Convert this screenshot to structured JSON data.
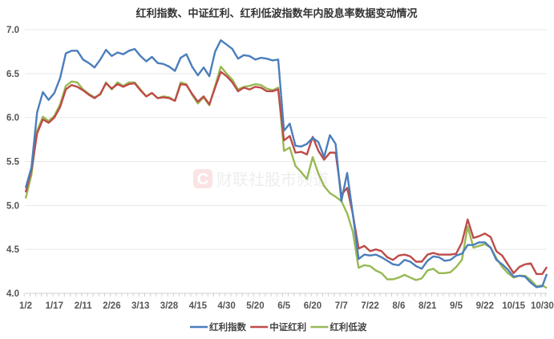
{
  "chart_data": {
    "type": "line",
    "title": "红利指数、中证红利、红利低波指数年内股息率数据变动情况",
    "xlabel": "",
    "ylabel": "",
    "ylim": [
      4.0,
      7.0
    ],
    "yticks": [
      "4.0",
      "4.5",
      "5.0",
      "5.5",
      "6.0",
      "6.5",
      "7.0"
    ],
    "x_tick_labels": [
      "1/2",
      "1/17",
      "2/11",
      "2/26",
      "3/13",
      "3/28",
      "4/15",
      "4/30",
      "5/20",
      "6/5",
      "6/20",
      "7/7",
      "7/22",
      "8/6",
      "8/21",
      "9/5",
      "9/22",
      "10/15",
      "10/30"
    ],
    "grid": true,
    "legend_position": "bottom",
    "watermark": "财联社股市频道",
    "series": [
      {
        "name": "红利指数",
        "color": "#4a7ebb",
        "values": [
          5.2,
          5.43,
          6.06,
          6.29,
          6.2,
          6.28,
          6.45,
          6.73,
          6.76,
          6.76,
          6.66,
          6.62,
          6.57,
          6.66,
          6.77,
          6.7,
          6.74,
          6.72,
          6.76,
          6.78,
          6.7,
          6.64,
          6.69,
          6.62,
          6.61,
          6.58,
          6.53,
          6.68,
          6.72,
          6.58,
          6.48,
          6.57,
          6.47,
          6.75,
          6.88,
          6.83,
          6.78,
          6.67,
          6.71,
          6.7,
          6.66,
          6.68,
          6.67,
          6.65,
          6.66,
          5.85,
          5.93,
          5.68,
          5.67,
          5.7,
          5.77,
          5.72,
          5.55,
          5.8,
          5.7,
          5.05,
          5.37,
          4.9,
          4.39,
          4.44,
          4.43,
          4.44,
          4.41,
          4.37,
          4.33,
          4.32,
          4.38,
          4.36,
          4.31,
          4.28,
          4.37,
          4.42,
          4.41,
          4.37,
          4.38,
          4.43,
          4.45,
          4.55,
          4.55,
          4.58,
          4.58,
          4.52,
          4.38,
          4.33,
          4.27,
          4.19,
          4.2,
          4.19,
          4.12,
          4.07,
          4.08,
          4.22
        ]
      },
      {
        "name": "中证红利",
        "color": "#be4b48",
        "values": [
          5.15,
          5.4,
          5.82,
          5.98,
          5.94,
          6.0,
          6.12,
          6.32,
          6.37,
          6.35,
          6.31,
          6.26,
          6.22,
          6.27,
          6.39,
          6.33,
          6.38,
          6.35,
          6.38,
          6.39,
          6.31,
          6.24,
          6.28,
          6.22,
          6.23,
          6.22,
          6.19,
          6.38,
          6.37,
          6.27,
          6.18,
          6.24,
          6.15,
          6.34,
          6.52,
          6.47,
          6.4,
          6.3,
          6.34,
          6.32,
          6.35,
          6.34,
          6.3,
          6.3,
          6.32,
          5.74,
          5.79,
          5.6,
          5.61,
          5.58,
          5.78,
          5.62,
          5.52,
          5.6,
          5.6,
          5.12,
          5.2,
          4.9,
          4.51,
          4.54,
          4.48,
          4.5,
          4.48,
          4.41,
          4.38,
          4.43,
          4.44,
          4.42,
          4.36,
          4.36,
          4.44,
          4.46,
          4.44,
          4.44,
          4.44,
          4.45,
          4.58,
          4.84,
          4.63,
          4.65,
          4.68,
          4.64,
          4.48,
          4.43,
          4.33,
          4.23,
          4.3,
          4.33,
          4.34,
          4.22,
          4.22,
          4.3
        ]
      },
      {
        "name": "红利低波",
        "color": "#98b954",
        "values": [
          5.08,
          5.35,
          5.85,
          6.01,
          5.96,
          6.02,
          6.15,
          6.36,
          6.41,
          6.4,
          6.32,
          6.27,
          6.23,
          6.26,
          6.4,
          6.32,
          6.4,
          6.36,
          6.4,
          6.4,
          6.32,
          6.24,
          6.28,
          6.22,
          6.24,
          6.23,
          6.19,
          6.4,
          6.38,
          6.26,
          6.16,
          6.23,
          6.14,
          6.36,
          6.58,
          6.5,
          6.43,
          6.32,
          6.35,
          6.36,
          6.38,
          6.37,
          6.33,
          6.31,
          6.34,
          5.62,
          5.66,
          5.45,
          5.38,
          5.3,
          5.55,
          5.36,
          5.22,
          5.14,
          5.1,
          5.05,
          4.91,
          4.7,
          4.29,
          4.32,
          4.31,
          4.26,
          4.23,
          4.16,
          4.16,
          4.18,
          4.21,
          4.18,
          4.15,
          4.17,
          4.26,
          4.28,
          4.23,
          4.23,
          4.24,
          4.3,
          4.38,
          4.76,
          4.52,
          4.54,
          4.56,
          4.52,
          4.4,
          4.3,
          4.23,
          4.18,
          4.2,
          4.2,
          4.15,
          4.08,
          4.09,
          4.06
        ]
      }
    ]
  }
}
